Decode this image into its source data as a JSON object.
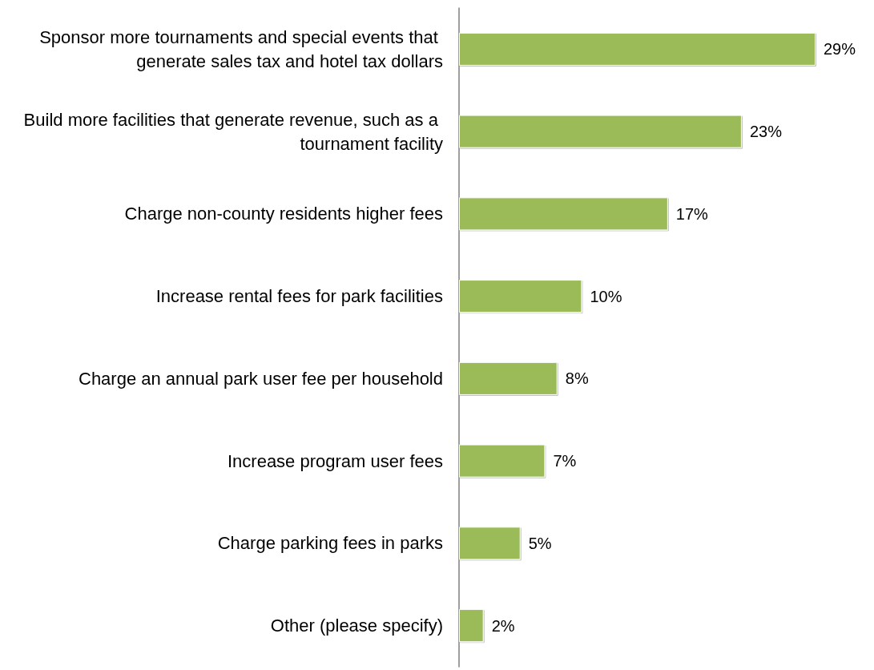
{
  "chart_data": {
    "type": "bar",
    "orientation": "horizontal",
    "categories": [
      "Sponsor more tournaments and special events that generate sales tax and hotel tax dollars",
      "Build more facilities that generate revenue, such as a tournament facility",
      "Charge non-county residents higher fees",
      "Increase rental fees for park facilities",
      "Charge an annual park user fee per household",
      "Increase program user fees",
      "Charge parking fees in parks",
      "Other (please specify)"
    ],
    "values": [
      29,
      23,
      17,
      10,
      8,
      7,
      5,
      2
    ],
    "value_labels": [
      "29%",
      "23%",
      "17%",
      "10%",
      "8%",
      "7%",
      "5%",
      "2%"
    ],
    "color": "#9bbb59"
  }
}
